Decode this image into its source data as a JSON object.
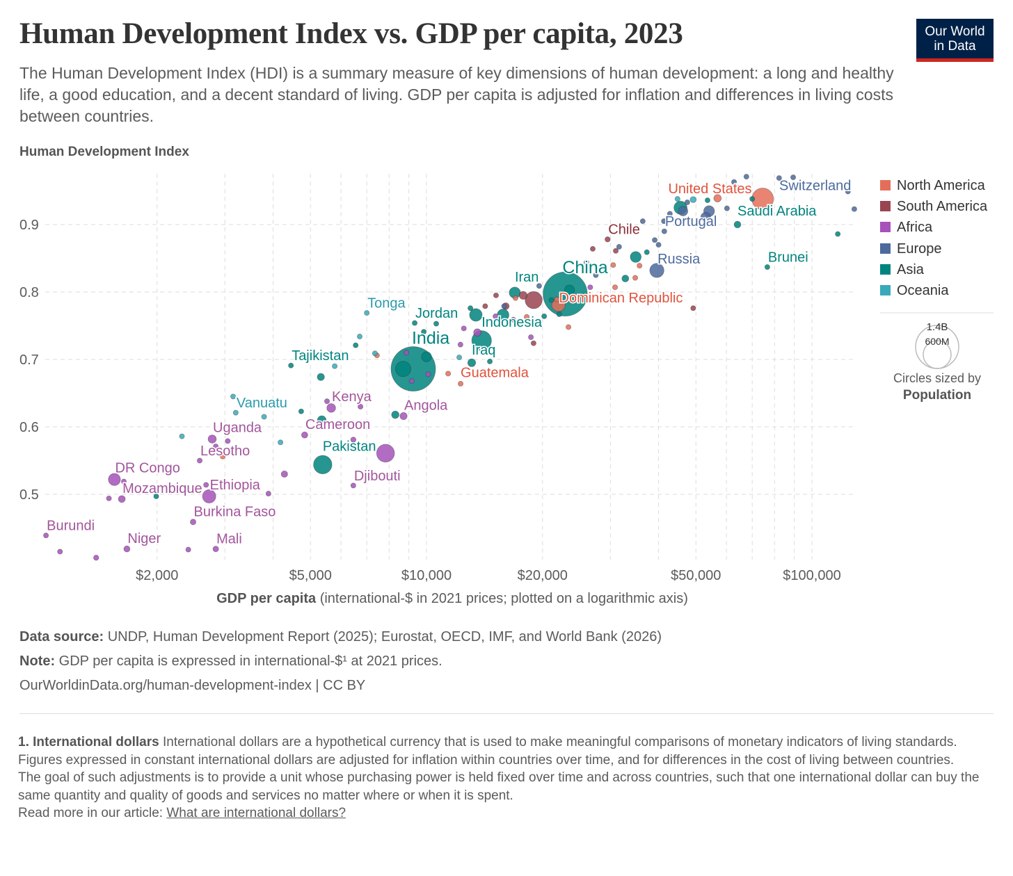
{
  "header": {
    "title": "Human Development Index vs. GDP per capita, 2023",
    "subtitle": "The Human Development Index (HDI) is a summary measure of key dimensions of human development: a long and healthy life, a good education, and a decent standard of living. GDP per capita is adjusted for inflation and differences in living costs between countries.",
    "logo_line1": "Our World",
    "logo_line2": "in Data"
  },
  "legend": {
    "items": [
      {
        "label": "North America",
        "color": "#e56e5a"
      },
      {
        "label": "South America",
        "color": "#9a4451"
      },
      {
        "label": "Africa",
        "color": "#a652ba"
      },
      {
        "label": "Europe",
        "color": "#4c6a9c"
      },
      {
        "label": "Asia",
        "color": "#00847e"
      },
      {
        "label": "Oceania",
        "color": "#38aaba"
      }
    ],
    "size_big": "1.4B",
    "size_small": "600M",
    "size_caption": "Circles sized by",
    "size_variable": "Population"
  },
  "footer": {
    "source_label": "Data source:",
    "source_text": "UNDP, Human Development Report (2025); Eurostat, OECD, IMF, and World Bank (2026)",
    "note_label": "Note:",
    "note_text": "GDP per capita is expressed in international-$¹ at 2021 prices.",
    "url": "OurWorldinData.org/human-development-index | CC BY",
    "fn_title": "1. International dollars",
    "fn_1": "International dollars are a hypothetical currency that is used to make meaningful comparisons of monetary indicators of living standards.",
    "fn_2": "Figures expressed in constant international dollars are adjusted for inflation within countries over time, and for differences in the cost of living between countries.",
    "fn_3": "The goal of such adjustments is to provide a unit whose purchasing power is held fixed over time and across countries, such that one international dollar can buy the same quantity and quality of goods and services no matter where or when it is spent.",
    "fn_read": "Read more in our article:",
    "fn_link": "What are international dollars?"
  },
  "chart_data": {
    "type": "scatter",
    "title": "Human Development Index vs. GDP per capita, 2023",
    "ylabel": "Human Development Index",
    "xlabel_bold": "GDP per capita",
    "xlabel_rest": "(international-$ in 2021 prices; plotted on a logarithmic axis)",
    "xscale": "log",
    "xlim": [
      1030,
      130000
    ],
    "ylim": [
      0.402,
      0.975
    ],
    "x_ticks": [
      2000,
      5000,
      10000,
      20000,
      50000,
      100000
    ],
    "x_tick_labels": [
      "$2,000",
      "$5,000",
      "$10,000",
      "$20,000",
      "$50,000",
      "$100,000"
    ],
    "x_grid": [
      2000,
      3000,
      4000,
      5000,
      6000,
      7000,
      8000,
      9000,
      10000,
      20000,
      30000,
      40000,
      50000,
      60000,
      70000,
      80000,
      90000,
      100000
    ],
    "y_ticks": [
      0.5,
      0.6,
      0.7,
      0.8,
      0.9
    ],
    "y_tick_labels": [
      "0.5",
      "0.6",
      "0.7",
      "0.8",
      "0.9"
    ],
    "grid": true,
    "legend_position": "right",
    "labeled_points": [
      {
        "name": "India",
        "region": "Asia",
        "gdp": 9240,
        "hdi": 0.686,
        "pop": 1430
      },
      {
        "name": "China",
        "region": "Asia",
        "gdp": 22900,
        "hdi": 0.797,
        "pop": 1410
      },
      {
        "name": "United States",
        "region": "North America",
        "gdp": 74500,
        "hdi": 0.938,
        "pop": 340
      },
      {
        "name": "Indonesia",
        "region": "Asia",
        "gdp": 13900,
        "hdi": 0.728,
        "pop": 280
      },
      {
        "name": "Pakistan",
        "region": "Asia",
        "gdp": 5380,
        "hdi": 0.544,
        "pop": 245
      },
      {
        "name": "Russia",
        "region": "Europe",
        "gdp": 39600,
        "hdi": 0.832,
        "pop": 145
      },
      {
        "name": "Iran",
        "region": "Asia",
        "gdp": 16950,
        "hdi": 0.799,
        "pop": 90
      },
      {
        "name": "Saudi Arabia",
        "region": "Asia",
        "gdp": 64100,
        "hdi": 0.9,
        "pop": 33
      },
      {
        "name": "Switzerland",
        "region": "Europe",
        "gdp": 89400,
        "hdi": 0.97,
        "pop": 9
      },
      {
        "name": "Portugal",
        "region": "Europe",
        "gdp": 41400,
        "hdi": 0.89,
        "pop": 10
      },
      {
        "name": "Chile",
        "region": "South America",
        "gdp": 29500,
        "hdi": 0.878,
        "pop": 20
      },
      {
        "name": "Brunei",
        "region": "Asia",
        "gdp": 76600,
        "hdi": 0.837,
        "pop": 1
      },
      {
        "name": "Dominican Republic",
        "region": "North America",
        "gdp": 21800,
        "hdi": 0.789,
        "pop": 11
      },
      {
        "name": "Jordan",
        "region": "Asia",
        "gdp": 9320,
        "hdi": 0.754,
        "pop": 11
      },
      {
        "name": "Guatemala",
        "region": "North America",
        "gdp": 12260,
        "hdi": 0.664,
        "pop": 18
      },
      {
        "name": "Iraq",
        "region": "Asia",
        "gdp": 13100,
        "hdi": 0.695,
        "pop": 45
      },
      {
        "name": "Tonga",
        "region": "Oceania",
        "gdp": 7000,
        "hdi": 0.769,
        "pop": 0.1
      },
      {
        "name": "Tajikistan",
        "region": "Asia",
        "gdp": 4450,
        "hdi": 0.691,
        "pop": 10
      },
      {
        "name": "Vanuatu",
        "region": "Oceania",
        "gdp": 3200,
        "hdi": 0.621,
        "pop": 0.3
      },
      {
        "name": "Kenya",
        "region": "Africa",
        "gdp": 5660,
        "hdi": 0.628,
        "pop": 55
      },
      {
        "name": "Angola",
        "region": "Africa",
        "gdp": 8720,
        "hdi": 0.616,
        "pop": 37
      },
      {
        "name": "Cameroon",
        "region": "Africa",
        "gdp": 4830,
        "hdi": 0.588,
        "pop": 28
      },
      {
        "name": "Uganda",
        "region": "Africa",
        "gdp": 2780,
        "hdi": 0.582,
        "pop": 48
      },
      {
        "name": "Lesotho",
        "region": "Africa",
        "gdp": 2580,
        "hdi": 0.55,
        "pop": 2
      },
      {
        "name": "DR Congo",
        "region": "Africa",
        "gdp": 1550,
        "hdi": 0.522,
        "pop": 105
      },
      {
        "name": "Mozambique",
        "region": "Africa",
        "gdp": 1620,
        "hdi": 0.493,
        "pop": 34
      },
      {
        "name": "Ethiopia",
        "region": "Africa",
        "gdp": 2730,
        "hdi": 0.497,
        "pop": 128
      },
      {
        "name": "Burkina Faso",
        "region": "Africa",
        "gdp": 2480,
        "hdi": 0.459,
        "pop": 23
      },
      {
        "name": "Mali",
        "region": "Africa",
        "gdp": 2840,
        "hdi": 0.419,
        "pop": 23
      },
      {
        "name": "Niger",
        "region": "Africa",
        "gdp": 1670,
        "hdi": 0.419,
        "pop": 27
      },
      {
        "name": "Burundi",
        "region": "Africa",
        "gdp": 1030,
        "hdi": 0.439,
        "pop": 13
      },
      {
        "name": "Djibouti",
        "region": "Africa",
        "gdp": 6460,
        "hdi": 0.513,
        "pop": 1
      }
    ],
    "other_points": {
      "North America": [
        [
          7440,
          0.706,
          3
        ],
        [
          2960,
          0.556,
          11
        ],
        [
          11380,
          0.679,
          10
        ],
        [
          17020,
          0.791,
          5
        ],
        [
          18200,
          0.763,
          6
        ],
        [
          22000,
          0.781,
          130
        ],
        [
          23350,
          0.748,
          4
        ],
        [
          30850,
          0.807,
          2
        ],
        [
          30500,
          0.84,
          1
        ],
        [
          35700,
          0.839,
          3
        ],
        [
          34800,
          0.821,
          1
        ],
        [
          56900,
          0.939,
          40
        ]
      ],
      "South America": [
        [
          15150,
          0.795,
          7
        ],
        [
          16060,
          0.779,
          33
        ],
        [
          18970,
          0.788,
          212
        ],
        [
          17820,
          0.795,
          46
        ],
        [
          27000,
          0.864,
          18
        ],
        [
          30980,
          0.861,
          4
        ],
        [
          49200,
          0.776,
          1
        ],
        [
          14200,
          0.779,
          18
        ],
        [
          18960,
          0.724,
          12
        ]
      ],
      "Africa": [
        [
          1120,
          0.415,
          6
        ],
        [
          1390,
          0.406,
          20
        ],
        [
          1500,
          0.494,
          14
        ],
        [
          1640,
          0.519,
          5
        ],
        [
          2410,
          0.418,
          18
        ],
        [
          2680,
          0.514,
          6
        ],
        [
          2840,
          0.571,
          2
        ],
        [
          3050,
          0.579,
          5
        ],
        [
          3890,
          0.501,
          18
        ],
        [
          4280,
          0.53,
          30
        ],
        [
          5520,
          0.638,
          2
        ],
        [
          6460,
          0.581,
          20
        ],
        [
          6740,
          0.63,
          3
        ],
        [
          7830,
          0.561,
          230
        ],
        [
          8870,
          0.71,
          1
        ],
        [
          9160,
          0.668,
          2
        ],
        [
          10100,
          0.678,
          1
        ],
        [
          12250,
          0.722,
          2
        ],
        [
          12500,
          0.746,
          3
        ],
        [
          13550,
          0.74,
          40
        ],
        [
          15100,
          0.764,
          12
        ],
        [
          16800,
          0.759,
          3
        ],
        [
          18660,
          0.733,
          2
        ],
        [
          26600,
          0.807,
          1
        ]
      ],
      "Europe": [
        [
          19600,
          0.809,
          2
        ],
        [
          15900,
          0.779,
          4
        ],
        [
          26000,
          0.844,
          6
        ],
        [
          27500,
          0.825,
          2
        ],
        [
          31600,
          0.867,
          2
        ],
        [
          36400,
          0.905,
          10
        ],
        [
          39100,
          0.877,
          4
        ],
        [
          40000,
          0.87,
          3
        ],
        [
          41300,
          0.905,
          10
        ],
        [
          42800,
          0.916,
          11
        ],
        [
          46300,
          0.92,
          66
        ],
        [
          47500,
          0.933,
          6
        ],
        [
          53000,
          0.911,
          68
        ],
        [
          54100,
          0.92,
          84
        ],
        [
          60200,
          0.924,
          9
        ],
        [
          62800,
          0.963,
          5
        ],
        [
          67600,
          0.971,
          5
        ],
        [
          82200,
          0.969,
          5
        ],
        [
          128800,
          0.923,
          1
        ],
        [
          124000,
          0.949,
          5
        ],
        [
          64100,
          0.955,
          18
        ]
      ],
      "Asia": [
        [
          1990,
          0.497,
          1
        ],
        [
          4730,
          0.623,
          7
        ],
        [
          5320,
          0.674,
          37
        ],
        [
          5350,
          0.61,
          55
        ],
        [
          6550,
          0.721,
          3
        ],
        [
          8300,
          0.618,
          40
        ],
        [
          8700,
          0.686,
          172
        ],
        [
          9840,
          0.741,
          7
        ],
        [
          10600,
          0.753,
          3
        ],
        [
          13000,
          0.776,
          3
        ],
        [
          13430,
          0.766,
          115
        ],
        [
          14600,
          0.697,
          2
        ],
        [
          20200,
          0.764,
          3
        ],
        [
          21100,
          0.788,
          10
        ],
        [
          22100,
          0.767,
          10
        ],
        [
          34900,
          0.852,
          86
        ],
        [
          32800,
          0.82,
          34
        ],
        [
          37300,
          0.859,
          5
        ],
        [
          45600,
          0.925,
          124
        ],
        [
          53600,
          0.936,
          4
        ],
        [
          70000,
          0.938,
          5
        ],
        [
          116700,
          0.886,
          3
        ],
        [
          10000,
          0.704,
          72
        ],
        [
          15800,
          0.766,
          100
        ],
        [
          23500,
          0.803,
          72
        ]
      ],
      "Oceania": [
        [
          2320,
          0.586,
          1
        ],
        [
          3150,
          0.645,
          0.3
        ],
        [
          3790,
          0.615,
          0.7
        ],
        [
          4180,
          0.577,
          10
        ],
        [
          5780,
          0.69,
          0.9
        ],
        [
          6710,
          0.734,
          0.2
        ],
        [
          7350,
          0.709,
          0.3
        ],
        [
          12160,
          0.703,
          0.1
        ],
        [
          49200,
          0.937,
          27
        ],
        [
          44800,
          0.938,
          5
        ]
      ]
    }
  }
}
